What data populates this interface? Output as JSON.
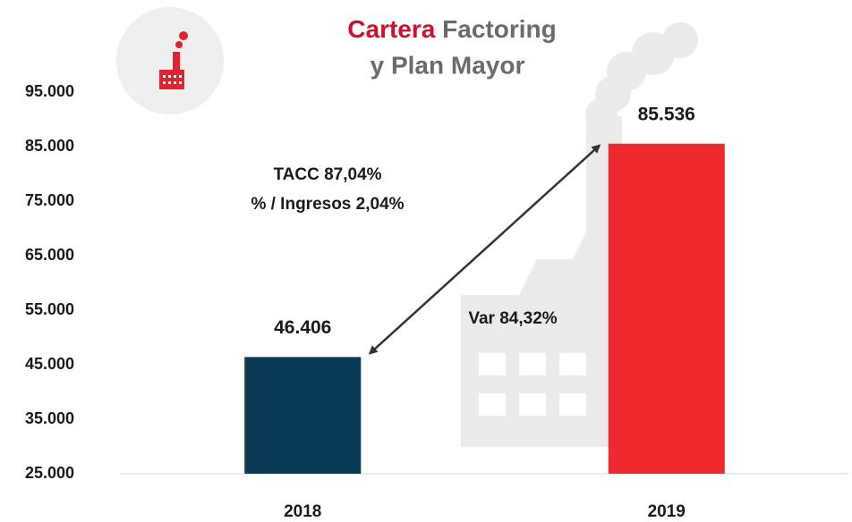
{
  "chart_data": {
    "type": "bar",
    "title": {
      "highlight": "Cartera",
      "rest": "Factoring",
      "line2": "y Plan Mayor"
    },
    "annotations": [
      "TACC 87,04%",
      "% / Ingresos 2,04%",
      "Var 84,32%"
    ],
    "categories": [
      "2018",
      "2019"
    ],
    "values": [
      46406,
      85536
    ],
    "value_labels": [
      "46.406",
      "85.536"
    ],
    "colors": [
      "#0b3b57",
      "#ee2a2e"
    ],
    "ylim": [
      25000,
      95000
    ],
    "yticks": [
      {
        "value": 25000,
        "label": "25.000"
      },
      {
        "value": 35000,
        "label": "35.000"
      },
      {
        "value": 45000,
        "label": "45.000"
      },
      {
        "value": 55000,
        "label": "55.000"
      },
      {
        "value": 65000,
        "label": "65.000"
      },
      {
        "value": 75000,
        "label": "75.000"
      },
      {
        "value": 85000,
        "label": "85.000"
      },
      {
        "value": 95000,
        "label": "95.000"
      }
    ],
    "grid": false
  }
}
